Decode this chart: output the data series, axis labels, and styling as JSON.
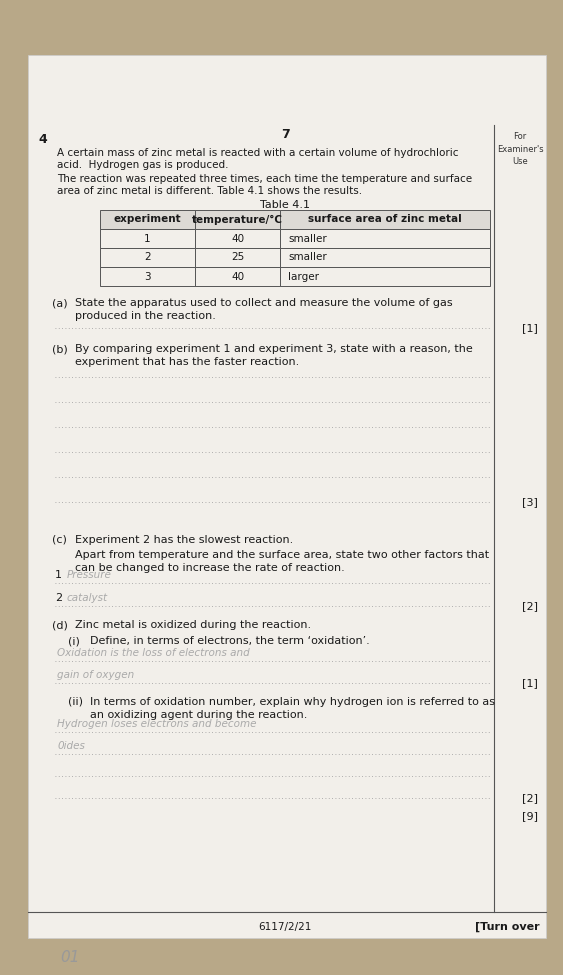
{
  "bg_color": "#b8a888",
  "paper_color": "#f2efea",
  "question_number": "4",
  "page_number": "7",
  "examiner_label": "For\nExaminer's\nUse",
  "intro_line1": "A certain mass of zinc metal is reacted with a certain volume of hydrochloric",
  "intro_line2": "acid.  Hydrogen gas is produced.",
  "intro_line3": "The reaction was repeated three times, each time the temperature and surface",
  "intro_line4": "area of zinc metal is different. Table 4.1 shows the results.",
  "table_title": "Table 4.1",
  "table_headers": [
    "experiment",
    "temperature/°C",
    "surface area of zinc metal"
  ],
  "table_rows": [
    [
      "1",
      "40",
      "smaller"
    ],
    [
      "2",
      "25",
      "smaller"
    ],
    [
      "3",
      "40",
      "larger"
    ]
  ],
  "part_a_label": "(a)",
  "part_a_text1": "State the apparatus used to collect and measure the volume of gas",
  "part_a_text2": "produced in the reaction.",
  "part_a_mark": "[1]",
  "part_b_label": "(b)",
  "part_b_text1": "By comparing experiment 1 and experiment 3, state with a reason, the",
  "part_b_text2": "experiment that has the faster reaction.",
  "part_b_mark": "[3]",
  "part_b_lines": 6,
  "part_c_label": "(c)",
  "part_c_text": "Experiment 2 has the slowest reaction.",
  "part_c_sub1": "Apart from temperature and the surface area, state two other factors that",
  "part_c_sub2": "can be changed to increase the rate of reaction.",
  "part_c_ans1": "Pressure",
  "part_c_ans2": "catalyst",
  "part_c_mark": "[2]",
  "part_d_label": "(d)",
  "part_d_text": "Zinc metal is oxidized during the reaction.",
  "part_di_label": "(i)",
  "part_di_text": "Define, in terms of electrons, the term ‘oxidation’.",
  "part_di_ans1": "Oxidation is the loss of electrons and",
  "part_di_ans2": "gain of oxygen",
  "part_di_mark": "[1]",
  "part_dii_label": "(ii)",
  "part_dii_text1": "In terms of oxidation number, explain why hydrogen ion is referred to as",
  "part_dii_text2": "an oxidizing agent during the reaction.",
  "part_dii_ans1": "Hydrogen loses electrons and become",
  "part_dii_ans2": "0ides",
  "part_dii_mark": "[2]",
  "total_mark": "[9]",
  "footer_code": "6117/2/21",
  "footer_turn": "[Turn over",
  "bottom_mark": "01",
  "dot_color": "#999999",
  "text_color": "#1a1a1a",
  "mark_color": "#1a1a1a",
  "handwrite_color": "#aaaaaa"
}
